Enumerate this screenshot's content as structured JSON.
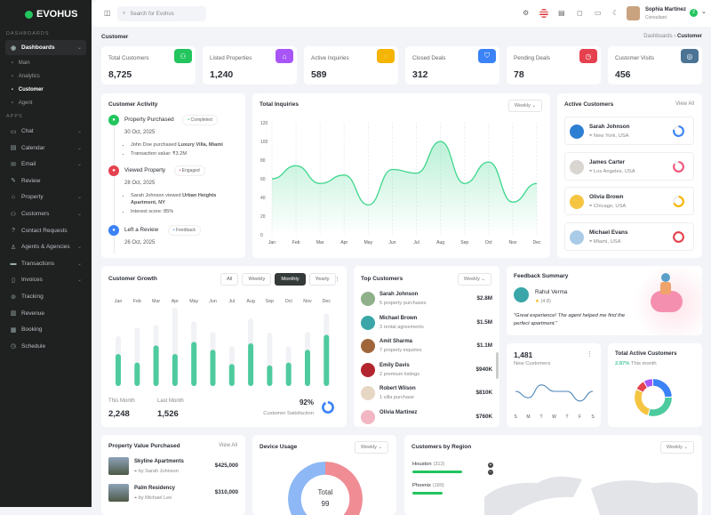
{
  "brand": "EVOHUS",
  "sidebar": {
    "section_dashboards": "DASHBOARDS",
    "dashboards": "Dashboards",
    "subitems": [
      "Main",
      "Analytics",
      "Customer",
      "Agent"
    ],
    "section_apps": "APPS",
    "items": [
      {
        "label": "Chat",
        "icon": "chat-icon",
        "chev": true
      },
      {
        "label": "Calendar",
        "icon": "calendar-icon",
        "chev": true
      },
      {
        "label": "Email",
        "icon": "mail-icon",
        "chev": true
      },
      {
        "label": "Review",
        "icon": "review-icon",
        "chev": false
      },
      {
        "label": "Property",
        "icon": "home-icon",
        "chev": true
      },
      {
        "label": "Customers",
        "icon": "users-icon",
        "chev": true
      },
      {
        "label": "Contact Requests",
        "icon": "help-icon",
        "chev": false
      },
      {
        "label": "Agents & Agencies",
        "icon": "agent-icon",
        "chev": true
      },
      {
        "label": "Transactions",
        "icon": "card-icon",
        "chev": true
      },
      {
        "label": "Invoices",
        "icon": "invoice-icon",
        "chev": true
      },
      {
        "label": "Tracking",
        "icon": "tracking-icon",
        "chev": false
      },
      {
        "label": "Revenue",
        "icon": "revenue-icon",
        "chev": false
      },
      {
        "label": "Booking",
        "icon": "booking-icon",
        "chev": false
      },
      {
        "label": "Schedule",
        "icon": "clock-icon",
        "chev": false
      }
    ]
  },
  "header": {
    "search_placeholder": "Search for Evohus",
    "user_name": "Sophia Martinez",
    "user_role": "Consultant",
    "badge": "2"
  },
  "page": {
    "title": "Customer",
    "breadcrumb": [
      "Dashboards",
      "Customer"
    ]
  },
  "stats": [
    {
      "label": "Total Customers",
      "value": "8,725",
      "color": "#22c55e",
      "icon": "users-icon"
    },
    {
      "label": "Listed Properties",
      "value": "1,240",
      "color": "#a855f7",
      "icon": "home-icon"
    },
    {
      "label": "Active Inquiries",
      "value": "589",
      "color": "#f5b400",
      "icon": "chat-icon"
    },
    {
      "label": "Closed Deals",
      "value": "312",
      "color": "#3b82f6",
      "icon": "handshake-icon"
    },
    {
      "label": "Pending Deals",
      "value": "78",
      "color": "#e5414f",
      "icon": "clock-icon"
    },
    {
      "label": "Customer Visits",
      "value": "456",
      "color": "#4a7394",
      "icon": "compass-icon"
    }
  ],
  "activity": {
    "title": "Customer Activity",
    "items": [
      {
        "title": "Property Purchased",
        "tag": "Completed",
        "tag_color": "#22c55e",
        "color": "#22c55e",
        "date": "30 Oct, 2025",
        "bullets": [
          [
            "John Doe purchased ",
            "Luxury Villa, Miami"
          ],
          [
            "Transaction value: ₹3.2M",
            ""
          ]
        ]
      },
      {
        "title": "Viewed Property",
        "tag": "Engaged",
        "tag_color": "#e5414f",
        "color": "#e5414f",
        "date": "28 Oct, 2025",
        "bullets": [
          [
            "Sarah Johnson viewed ",
            "Urban Heights Apartment, NY"
          ],
          [
            "Interest score: 85%",
            ""
          ]
        ]
      },
      {
        "title": "Left a Review",
        "tag": "Feedback",
        "tag_color": "#3b82f6",
        "color": "#3b82f6",
        "date": "26 Oct, 2025",
        "bullets": []
      }
    ]
  },
  "chart_data": [
    {
      "type": "area",
      "title": "Total Inquiries",
      "categories": [
        "Jan",
        "Feb",
        "Mar",
        "Apr",
        "May",
        "Jun",
        "Jul",
        "Aug",
        "Sep",
        "Oct",
        "Nov",
        "Dec"
      ],
      "values": [
        60,
        74,
        55,
        64,
        32,
        70,
        66,
        100,
        55,
        78,
        35,
        55
      ],
      "ylim": [
        0,
        120
      ],
      "yticks": [
        0,
        20,
        40,
        60,
        80,
        100,
        120
      ],
      "color": "#3dd68c",
      "grid": "vertical dashed"
    },
    {
      "type": "bar",
      "title": "Customer Growth",
      "categories": [
        "Jan",
        "Feb",
        "Mar",
        "Apr",
        "May",
        "Jun",
        "Jul",
        "Aug",
        "Sep",
        "Oct",
        "Nov",
        "Dec"
      ],
      "values": [
        45,
        33,
        57,
        45,
        62,
        51,
        31,
        60,
        29,
        33,
        51,
        72
      ],
      "totals": [
        70,
        82,
        86,
        110,
        91,
        76,
        56,
        95,
        75,
        56,
        76,
        102
      ],
      "color": "#4ecb9e"
    },
    {
      "type": "line",
      "title": "New Customers",
      "categories": [
        "S",
        "M",
        "T",
        "W",
        "T",
        "F",
        "S"
      ],
      "values": [
        5,
        3,
        7,
        5,
        5,
        2,
        5
      ],
      "color": "#4a84b5"
    }
  ],
  "inquiries_dd": "Weekly",
  "active": {
    "title": "Active Customers",
    "view_all": "View All",
    "items": [
      {
        "name": "Sarah Johnson",
        "loc": "New York, USA",
        "color": "#3b82f6",
        "pct": 80
      },
      {
        "name": "James Carter",
        "loc": "Los Angeles, USA",
        "color": "#f0557a",
        "pct": 85
      },
      {
        "name": "Olivia Brown",
        "loc": "Chicago, USA",
        "color": "#f5b400",
        "pct": 70
      },
      {
        "name": "Michael Evans",
        "loc": "Miami, USA",
        "color": "#e5414f",
        "pct": 100
      }
    ]
  },
  "growth": {
    "tabs": [
      "All",
      "Weekly",
      "Monthly",
      "Yearly"
    ],
    "active_tab": "Monthly",
    "this_month_label": "This Month",
    "this_month": "2,248",
    "last_month_label": "Last Month",
    "last_month": "1,526",
    "satisfaction": "92%",
    "satisfaction_label": "Customer Satisfaction"
  },
  "top": {
    "title": "Top Customers",
    "dd": "Weekly",
    "items": [
      {
        "name": "Sarah Johnson",
        "sub": "5 property purchases",
        "val": "$2.8M",
        "c": "#8fb08a"
      },
      {
        "name": "Michael Brown",
        "sub": "3 rental agreements",
        "val": "$1.5M",
        "c": "#3aa6a8"
      },
      {
        "name": "Amit Sharma",
        "sub": "7 property inquiries",
        "val": "$1.1M",
        "c": "#a0663a"
      },
      {
        "name": "Emily Davis",
        "sub": "2 premium listings",
        "val": "$940K",
        "c": "#b3262f"
      },
      {
        "name": "Robert Wilson",
        "sub": "1 villa purchase",
        "val": "$810K",
        "c": "#e6d6c4"
      },
      {
        "name": "Olivia Martinez",
        "sub": "",
        "val": "$760K",
        "c": "#f2b7c2"
      }
    ]
  },
  "feedback": {
    "title": "Feedback Summary",
    "name": "Rahul Verma",
    "rating": "(4.8)",
    "quote": "\"Great experience! The agent helped me find the perfect apartment.\""
  },
  "new_customers": {
    "value": "1,481",
    "label": "New Customers"
  },
  "total_active": {
    "title": "Total Active Customers",
    "pct": "2.87%",
    "suffix": " This month",
    "segments": [
      {
        "color": "#3b82f6",
        "v": 25
      },
      {
        "color": "#4ecb9e",
        "v": 30
      },
      {
        "color": "#f5c542",
        "v": 28
      },
      {
        "color": "#e5414f",
        "v": 9
      },
      {
        "color": "#a855f7",
        "v": 8
      }
    ]
  },
  "property_value": {
    "title": "Property Value Purchased",
    "view_all": "View All",
    "items": [
      {
        "name": "Skyline Apartments",
        "by": "by Sarah Johnson",
        "val": "$425,000"
      },
      {
        "name": "Palm Residency",
        "by": "by Michael Lee",
        "val": "$310,000"
      }
    ]
  },
  "device": {
    "title": "Device Usage",
    "dd": "Weekly",
    "total_label": "Total",
    "total": "99"
  },
  "region": {
    "title": "Customers by Region",
    "dd": "Weekly",
    "items": [
      {
        "city": "Houston",
        "count": "(312)",
        "pct": 100
      },
      {
        "city": "Phoenix",
        "count": "(189)",
        "pct": 60
      }
    ]
  }
}
